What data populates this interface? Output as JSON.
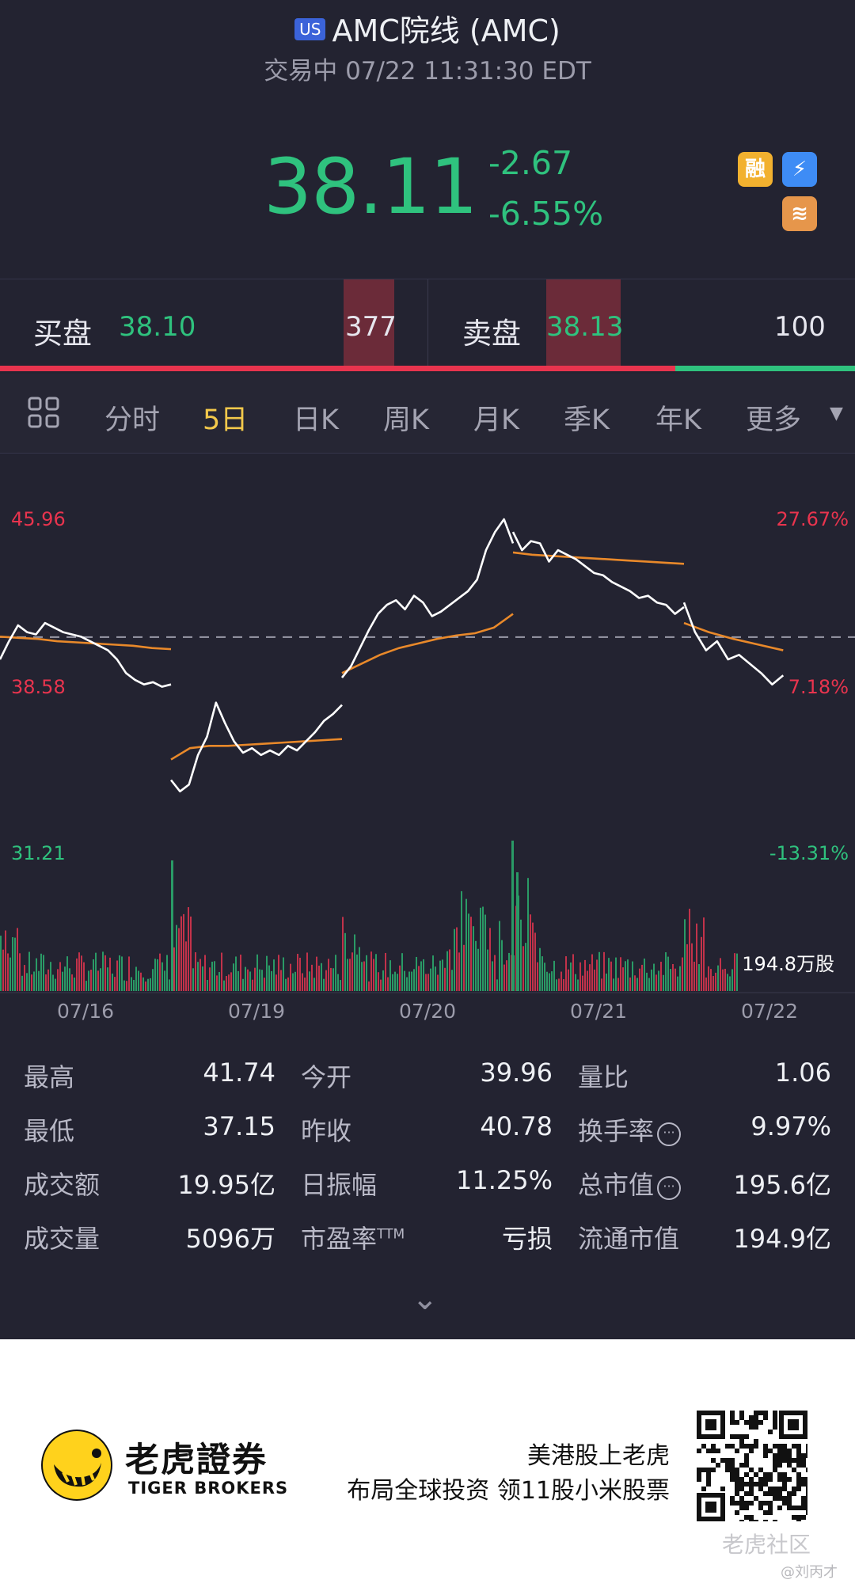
{
  "header": {
    "market_badge": "US",
    "title": "AMC院线 (AMC)",
    "status": "交易中 07/22 11:31:30 EDT",
    "price": "38.11",
    "change": "-2.67",
    "change_pct": "-6.55%",
    "badges": [
      "融",
      "⚡",
      "≋"
    ],
    "badge_icons": [
      "margin-icon",
      "flash-icon",
      "layers-icon"
    ]
  },
  "order_book": {
    "bid_label": "买盘",
    "bid_price": "38.10",
    "bid_volume": "377",
    "ask_label": "卖盘",
    "ask_price": "38.13",
    "ask_volume": "100"
  },
  "tabs": {
    "items": [
      "分时",
      "5日",
      "日K",
      "周K",
      "月K",
      "季K",
      "年K",
      "更多"
    ],
    "active": "5日"
  },
  "chart_data": {
    "type": "line",
    "x_ticks": [
      "07/16",
      "07/19",
      "07/20",
      "07/21",
      "07/22"
    ],
    "y_left": [
      "45.96",
      "38.58",
      "31.21"
    ],
    "y_right": [
      "27.67%",
      "7.18%",
      "-13.31%"
    ],
    "prev_close": 40.78,
    "ylim": [
      31.21,
      45.96
    ],
    "volume_label": "194.8万股",
    "days": [
      {
        "day": "07/16",
        "price": [
          39.8,
          40.6,
          41.3,
          41.0,
          40.9,
          41.4,
          41.2,
          41.0,
          40.9,
          40.8,
          40.6,
          40.4,
          40.2,
          39.8,
          39.2,
          38.9,
          38.7,
          38.8,
          38.6,
          38.7
        ],
        "avg": [
          40.8,
          40.75,
          40.7,
          40.6,
          40.55,
          40.5,
          40.45,
          40.4,
          40.3,
          40.25
        ]
      },
      {
        "day": "07/19",
        "price": [
          34.5,
          34.0,
          34.3,
          35.6,
          36.4,
          37.9,
          37.0,
          36.2,
          35.7,
          35.9,
          35.6,
          35.8,
          35.6,
          36.0,
          35.8,
          36.2,
          36.6,
          37.1,
          37.4,
          37.8
        ],
        "avg": [
          35.4,
          35.9,
          36.0,
          36.0,
          36.05,
          36.1,
          36.15,
          36.2,
          36.25,
          36.3
        ]
      },
      {
        "day": "07/20",
        "price": [
          39.0,
          39.5,
          40.3,
          41.1,
          41.8,
          42.2,
          42.4,
          42.0,
          42.6,
          42.3,
          41.7,
          41.9,
          42.2,
          42.5,
          42.8,
          43.3,
          44.6,
          45.4,
          45.96,
          44.9
        ],
        "avg": [
          39.2,
          39.6,
          40.0,
          40.3,
          40.5,
          40.7,
          40.85,
          40.95,
          41.2,
          41.8
        ]
      },
      {
        "day": "07/21",
        "price": [
          45.4,
          44.6,
          45.0,
          44.9,
          44.1,
          44.6,
          44.4,
          44.2,
          43.9,
          43.6,
          43.5,
          43.2,
          43.0,
          42.8,
          42.5,
          42.6,
          42.3,
          42.2,
          41.8,
          42.1
        ],
        "avg": [
          44.5,
          44.4,
          44.35,
          44.3,
          44.25,
          44.2,
          44.15,
          44.1,
          44.05,
          44.0
        ]
      },
      {
        "day": "07/22",
        "price": [
          42.3,
          41.0,
          40.2,
          40.6,
          39.8,
          40.0,
          39.6,
          39.2,
          38.7,
          39.1
        ],
        "avg": [
          41.4,
          41.0,
          40.7,
          40.45,
          40.2
        ]
      }
    ]
  },
  "stats": [
    {
      "label": "最高",
      "value": "41.74"
    },
    {
      "label": "今开",
      "value": "39.96"
    },
    {
      "label": "量比",
      "value": "1.06"
    },
    {
      "label": "最低",
      "value": "37.15"
    },
    {
      "label": "昨收",
      "value": "40.78"
    },
    {
      "label": "换手率",
      "value": "9.97%",
      "info": true
    },
    {
      "label": "成交额",
      "value": "19.95亿"
    },
    {
      "label": "日振幅",
      "value": "11.25%"
    },
    {
      "label": "总市值",
      "value": "195.6亿",
      "info": true
    },
    {
      "label": "成交量",
      "value": "5096万"
    },
    {
      "label": "市盈率",
      "label_sup": "TTM",
      "value": "亏损"
    },
    {
      "label": "流通市值",
      "value": "194.9亿"
    }
  ],
  "expand_icon": "chevron-down-icon",
  "footer": {
    "logo_cn": "老虎證券",
    "logo_en": "TIGER BROKERS",
    "slogan_1": "美港股上老虎",
    "slogan_2": "布局全球投资 领11股小米股票",
    "watermark": "老虎社区",
    "watermark_user": "@刘丙才"
  },
  "colors": {
    "up": "#e8344e",
    "down": "#2fc27e",
    "avg_line": "#e9892a",
    "price_line": "#ffffff",
    "active_tab": "#f2c84b"
  }
}
